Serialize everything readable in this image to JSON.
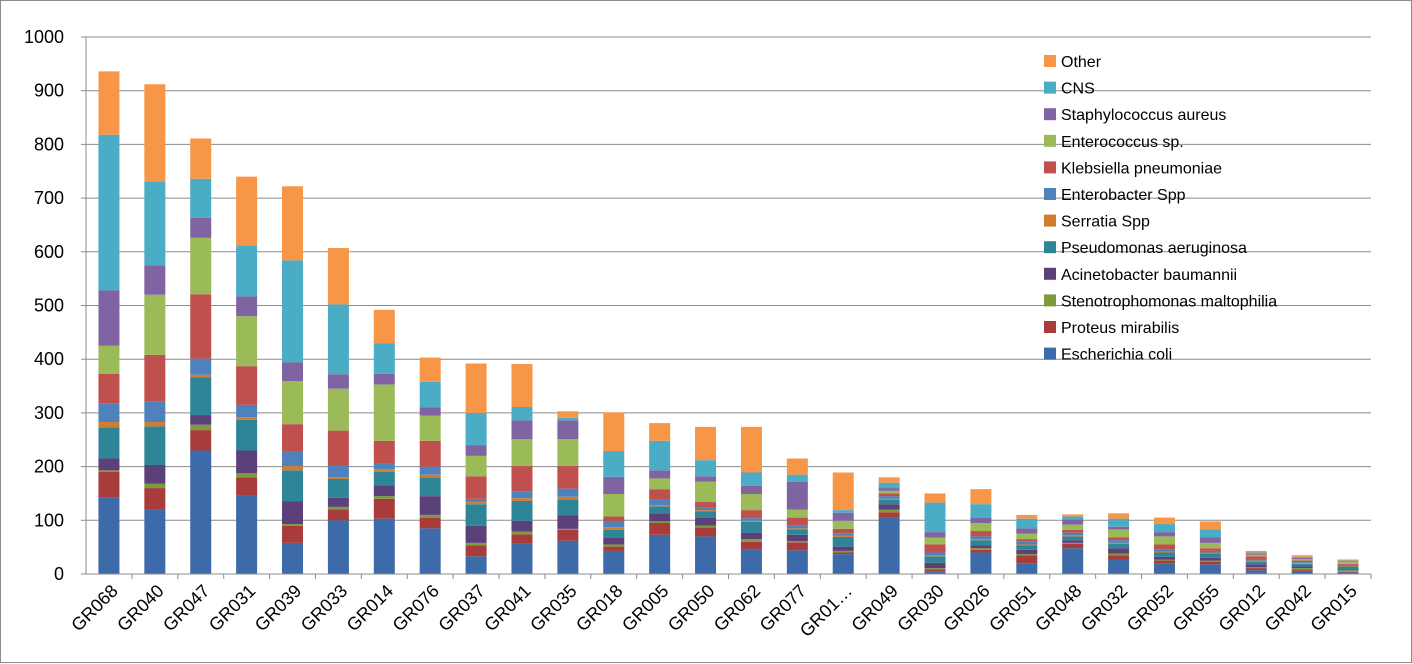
{
  "chart_data": {
    "type": "bar",
    "stacked": true,
    "title": "",
    "xlabel": "",
    "ylabel": "",
    "ylim": [
      0,
      1000
    ],
    "yticks": [
      0,
      100,
      200,
      300,
      400,
      500,
      600,
      700,
      800,
      900,
      1000
    ],
    "grid": "horizontal",
    "legend_position": "top-right",
    "categories": [
      "GR068",
      "GR040",
      "GR047",
      "GR031",
      "GR039",
      "GR033",
      "GR014",
      "GR076",
      "GR037",
      "GR041",
      "GR035",
      "GR018",
      "GR005",
      "GR050",
      "GR062",
      "GR077",
      "GR01…",
      "GR049",
      "GR030",
      "GR026",
      "GR051",
      "GR048",
      "GR032",
      "GR052",
      "GR055",
      "GR012",
      "GR042",
      "GR015"
    ],
    "series": [
      {
        "name": "Escherichia coli",
        "color": "#3d6aa8",
        "values": [
          142,
          120,
          230,
          147,
          58,
          100,
          103,
          85,
          33,
          57,
          62,
          43,
          73,
          70,
          45,
          44,
          37,
          105,
          5,
          40,
          20,
          48,
          27,
          20,
          18,
          7,
          6,
          3
        ]
      },
      {
        "name": "Proteus mirabilis",
        "color": "#a73c3a",
        "values": [
          48,
          40,
          38,
          33,
          32,
          20,
          37,
          20,
          20,
          17,
          20,
          8,
          22,
          17,
          15,
          15,
          3,
          10,
          4,
          5,
          15,
          8,
          8,
          5,
          5,
          4,
          3,
          1
        ]
      },
      {
        "name": "Stenotrophomonas maltophilia",
        "color": "#7d9b3a",
        "values": [
          3,
          8,
          10,
          8,
          3,
          5,
          5,
          5,
          5,
          5,
          2,
          4,
          3,
          3,
          5,
          2,
          3,
          5,
          2,
          3,
          2,
          2,
          3,
          2,
          2,
          2,
          2,
          3
        ]
      },
      {
        "name": "Acinetobacter baumannii",
        "color": "#5b407a",
        "values": [
          22,
          35,
          18,
          42,
          42,
          17,
          20,
          35,
          32,
          20,
          25,
          12,
          15,
          15,
          12,
          12,
          8,
          10,
          10,
          5,
          8,
          5,
          10,
          5,
          5,
          5,
          3,
          2
        ]
      },
      {
        "name": "Pseudomonas aeruginosa",
        "color": "#2e8597",
        "values": [
          58,
          72,
          70,
          57,
          58,
          35,
          25,
          35,
          40,
          37,
          30,
          15,
          13,
          12,
          20,
          10,
          18,
          8,
          12,
          10,
          8,
          7,
          8,
          8,
          8,
          5,
          5,
          5
        ]
      },
      {
        "name": "Serratia Spp",
        "color": "#d17d2f",
        "values": [
          10,
          8,
          5,
          5,
          8,
          3,
          5,
          5,
          5,
          5,
          5,
          5,
          2,
          2,
          2,
          2,
          2,
          2,
          2,
          2,
          2,
          2,
          2,
          2,
          2,
          2,
          1,
          1
        ]
      },
      {
        "name": "Enterobacter Spp",
        "color": "#4f81bd",
        "values": [
          35,
          38,
          30,
          23,
          28,
          22,
          10,
          15,
          5,
          13,
          15,
          10,
          10,
          5,
          5,
          5,
          5,
          5,
          5,
          5,
          5,
          5,
          5,
          3,
          3,
          3,
          2,
          2
        ]
      },
      {
        "name": "Klebsiella pneumoniae",
        "color": "#c0504d",
        "values": [
          55,
          87,
          120,
          72,
          50,
          65,
          43,
          48,
          42,
          47,
          42,
          10,
          20,
          10,
          15,
          15,
          8,
          5,
          15,
          10,
          5,
          5,
          5,
          10,
          5,
          5,
          3,
          2
        ]
      },
      {
        "name": "Enterococcus sp.",
        "color": "#9bbb59",
        "values": [
          52,
          112,
          105,
          93,
          80,
          78,
          105,
          47,
          38,
          50,
          50,
          42,
          20,
          38,
          30,
          15,
          15,
          5,
          13,
          15,
          10,
          10,
          15,
          15,
          10,
          3,
          3,
          3
        ]
      },
      {
        "name": "Staphylococcus aureus",
        "color": "#8064a2",
        "values": [
          103,
          55,
          37,
          37,
          35,
          27,
          20,
          15,
          20,
          35,
          35,
          32,
          15,
          10,
          15,
          52,
          15,
          5,
          10,
          10,
          10,
          10,
          5,
          8,
          10,
          2,
          2,
          1
        ]
      },
      {
        "name": "CNS",
        "color": "#4bacc6",
        "values": [
          290,
          155,
          73,
          95,
          190,
          130,
          57,
          48,
          60,
          25,
          5,
          48,
          55,
          30,
          25,
          13,
          5,
          10,
          55,
          25,
          18,
          5,
          15,
          15,
          15,
          2,
          2,
          2
        ]
      },
      {
        "name": "Other",
        "color": "#f79646",
        "values": [
          118,
          182,
          75,
          128,
          138,
          105,
          62,
          45,
          92,
          80,
          12,
          72,
          33,
          62,
          85,
          30,
          70,
          10,
          17,
          28,
          7,
          4,
          10,
          12,
          15,
          3,
          3,
          2
        ]
      }
    ]
  }
}
